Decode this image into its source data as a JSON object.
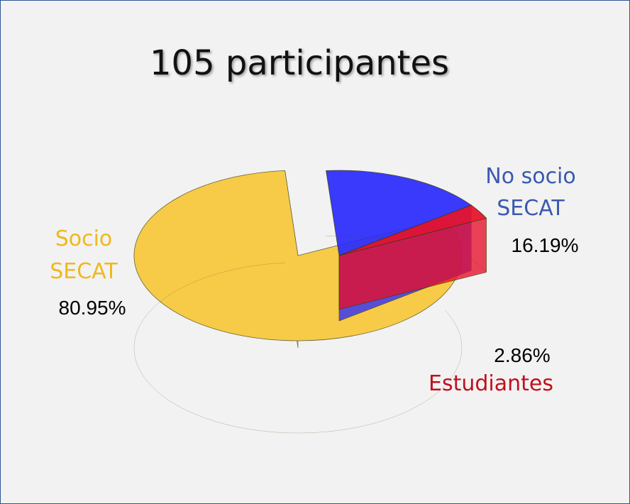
{
  "chart_data": {
    "type": "pie",
    "title": "105 participantes",
    "slices": [
      {
        "label_lines": [
          "Socio",
          "SECAT"
        ],
        "pct_label": "80.95%",
        "value": 80.95,
        "color": "#f9c118",
        "label_color": "#f0b81c"
      },
      {
        "label_lines": [
          "No socio",
          "SECAT"
        ],
        "pct_label": "16.19%",
        "value": 16.19,
        "color": "#2b2bff",
        "label_color": "#3a5ab0"
      },
      {
        "label_lines": [
          "Estudiantes"
        ],
        "pct_label": "2.86%",
        "value": 2.86,
        "color": "#e8102a",
        "label_color": "#c0101e"
      }
    ]
  }
}
